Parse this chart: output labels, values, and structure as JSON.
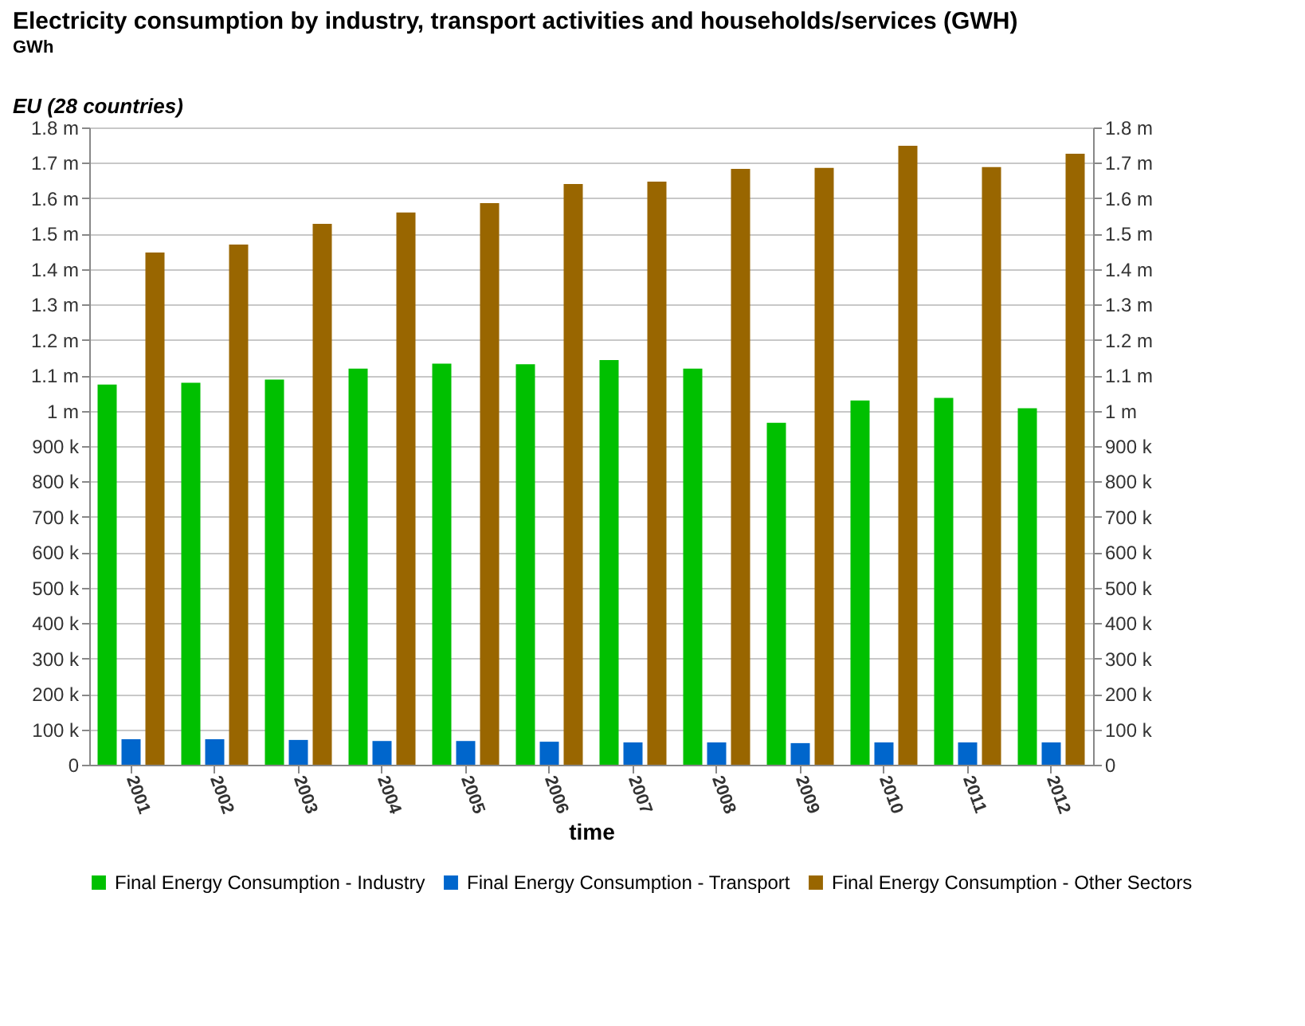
{
  "chart_data": {
    "type": "bar",
    "title": "Electricity consumption by industry, transport activities and households/services (GWH)",
    "subtitle": "GWh",
    "annotations": [
      "EU (28 countries)"
    ],
    "xlabel": "time",
    "categories": [
      "2001",
      "2002",
      "2003",
      "2004",
      "2005",
      "2006",
      "2007",
      "2008",
      "2009",
      "2010",
      "2011",
      "2012"
    ],
    "series": [
      {
        "name": "Final Energy Consumption - Industry",
        "color": "#00c000",
        "values": [
          1074000,
          1079000,
          1088000,
          1119000,
          1133000,
          1131000,
          1143000,
          1119000,
          966000,
          1029000,
          1036000,
          1007000
        ]
      },
      {
        "name": "Final Energy Consumption - Transport",
        "color": "#0066cc",
        "values": [
          72000,
          72000,
          70000,
          67000,
          67000,
          65000,
          63000,
          63000,
          61000,
          63000,
          63000,
          63000
        ]
      },
      {
        "name": "Final Energy Consumption - Other Sectors",
        "color": "#996600",
        "values": [
          1447000,
          1469000,
          1528000,
          1560000,
          1586000,
          1640000,
          1647000,
          1683000,
          1686000,
          1748000,
          1688000,
          1726000
        ]
      }
    ],
    "ylim": [
      0,
      1800000
    ],
    "yticks": [
      0,
      {
        "value": 100000,
        "label": "100 k"
      },
      {
        "value": 200000,
        "label": "200 k"
      },
      {
        "value": 300000,
        "label": "300 k"
      },
      {
        "value": 400000,
        "label": "400 k"
      },
      {
        "value": 500000,
        "label": "500 k"
      },
      {
        "value": 600000,
        "label": "600 k"
      },
      {
        "value": 700000,
        "label": "700 k"
      },
      {
        "value": 800000,
        "label": "800 k"
      },
      {
        "value": 900000,
        "label": "900 k"
      },
      {
        "value": 1000000,
        "label": "1 m"
      },
      {
        "value": 1100000,
        "label": "1.1 m"
      },
      {
        "value": 1200000,
        "label": "1.2 m"
      },
      {
        "value": 1300000,
        "label": "1.3 m"
      },
      {
        "value": 1400000,
        "label": "1.4 m"
      },
      {
        "value": 1500000,
        "label": "1.5 m"
      },
      {
        "value": 1600000,
        "label": "1.6 m"
      },
      {
        "value": 1700000,
        "label": "1.7 m"
      },
      {
        "value": 1800000,
        "label": "1.8 m"
      }
    ],
    "y2lim": [
      0,
      1800000
    ],
    "y2ticks": [
      0,
      {
        "value": 100000,
        "label": "100 k"
      },
      {
        "value": 200000,
        "label": "200 k"
      },
      {
        "value": 300000,
        "label": "300 k"
      },
      {
        "value": 400000,
        "label": "400 k"
      },
      {
        "value": 500000,
        "label": "500 k"
      },
      {
        "value": 600000,
        "label": "600 k"
      },
      {
        "value": 700000,
        "label": "700 k"
      },
      {
        "value": 800000,
        "label": "800 k"
      },
      {
        "value": 900000,
        "label": "900 k"
      },
      {
        "value": 1000000,
        "label": "1 m"
      },
      {
        "value": 1100000,
        "label": "1.1 m"
      },
      {
        "value": 1200000,
        "label": "1.2 m"
      },
      {
        "value": 1300000,
        "label": "1.3 m"
      },
      {
        "value": 1400000,
        "label": "1.4 m"
      },
      {
        "value": 1500000,
        "label": "1.5 m"
      },
      {
        "value": 1600000,
        "label": "1.6 m"
      },
      {
        "value": 1700000,
        "label": "1.7 m"
      },
      {
        "value": 1800000,
        "label": "1.8 m"
      }
    ],
    "grid": "y",
    "legend": "bottom"
  }
}
